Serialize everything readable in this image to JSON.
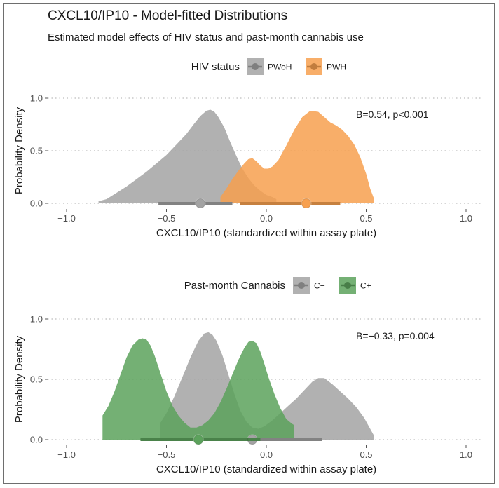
{
  "title": "CXCL10/IP10 - Model-fitted Distributions",
  "subtitle": "Estimated model effects of HIV status and past-month cannabis use",
  "chart_data": [
    {
      "type": "area",
      "legend_title": "HIV status",
      "legend_position": "top",
      "xlabel": "CXCL10/IP10 (standardized within assay plate)",
      "ylabel": "Probability Density",
      "xlim": [
        -1.0,
        1.0
      ],
      "ylim": [
        0,
        1.0
      ],
      "x_ticks": [
        "−1.0",
        "−0.5",
        "0.0",
        "0.5",
        "1.0"
      ],
      "y_ticks": [
        "0.0",
        "0.5",
        "1.0"
      ],
      "grid": "horizontal dotted",
      "annotation": "B=0.54, p<0.001",
      "series": [
        {
          "name": "PWoH",
          "color": "#a3a3a3",
          "x": [
            -0.84,
            -0.8,
            -0.75,
            -0.7,
            -0.65,
            -0.6,
            -0.55,
            -0.5,
            -0.45,
            -0.4,
            -0.36,
            -0.33,
            -0.3,
            -0.28,
            -0.26,
            -0.24,
            -0.21,
            -0.18,
            -0.15,
            -0.12,
            -0.09,
            -0.06,
            -0.03,
            0.0,
            0.03,
            0.05
          ],
          "density": [
            0.02,
            0.04,
            0.1,
            0.16,
            0.23,
            0.3,
            0.38,
            0.46,
            0.56,
            0.66,
            0.76,
            0.83,
            0.88,
            0.89,
            0.87,
            0.82,
            0.72,
            0.58,
            0.45,
            0.33,
            0.24,
            0.17,
            0.12,
            0.08,
            0.06,
            0.04
          ],
          "point_estimate": -0.33,
          "interval": [
            -0.54,
            -0.17
          ]
        },
        {
          "name": "PWH",
          "color": "#f7a04f",
          "x": [
            -0.23,
            -0.2,
            -0.17,
            -0.14,
            -0.11,
            -0.09,
            -0.07,
            -0.05,
            -0.03,
            -0.01,
            0.01,
            0.03,
            0.06,
            0.1,
            0.14,
            0.18,
            0.22,
            0.26,
            0.29,
            0.32,
            0.35,
            0.38,
            0.41,
            0.44,
            0.47,
            0.5,
            0.52,
            0.54
          ],
          "density": [
            0.06,
            0.14,
            0.23,
            0.31,
            0.38,
            0.42,
            0.43,
            0.4,
            0.36,
            0.33,
            0.33,
            0.35,
            0.41,
            0.55,
            0.7,
            0.82,
            0.88,
            0.87,
            0.82,
            0.77,
            0.74,
            0.7,
            0.64,
            0.56,
            0.44,
            0.28,
            0.14,
            0.04
          ],
          "point_estimate": 0.2,
          "interval": [
            -0.13,
            0.37
          ]
        }
      ]
    },
    {
      "type": "area",
      "legend_title": "Past-month Cannabis",
      "legend_position": "top",
      "xlabel": "CXCL10/IP10 (standardized within assay plate)",
      "ylabel": "Probability Density",
      "xlim": [
        -1.0,
        1.0
      ],
      "ylim": [
        0,
        1.0
      ],
      "x_ticks": [
        "−1.0",
        "−0.5",
        "0.0",
        "0.5",
        "1.0"
      ],
      "y_ticks": [
        "0.0",
        "0.5",
        "1.0"
      ],
      "grid": "horizontal dotted",
      "annotation": "B=−0.33, p=0.004",
      "series": [
        {
          "name": "C−",
          "color": "#a3a3a3",
          "x": [
            -0.53,
            -0.5,
            -0.46,
            -0.42,
            -0.38,
            -0.34,
            -0.31,
            -0.29,
            -0.27,
            -0.25,
            -0.22,
            -0.19,
            -0.16,
            -0.13,
            -0.1,
            -0.07,
            -0.04,
            -0.01,
            0.03,
            0.07,
            0.11,
            0.15,
            0.19,
            0.23,
            0.26,
            0.29,
            0.33,
            0.37,
            0.41,
            0.45,
            0.49,
            0.52,
            0.54
          ],
          "density": [
            0.14,
            0.22,
            0.36,
            0.52,
            0.68,
            0.82,
            0.88,
            0.89,
            0.87,
            0.82,
            0.7,
            0.54,
            0.38,
            0.24,
            0.15,
            0.1,
            0.09,
            0.11,
            0.16,
            0.22,
            0.28,
            0.34,
            0.41,
            0.48,
            0.51,
            0.51,
            0.46,
            0.4,
            0.34,
            0.27,
            0.18,
            0.09,
            0.03
          ],
          "point_estimate": -0.07,
          "interval": [
            -0.31,
            0.28
          ]
        },
        {
          "name": "C+",
          "color": "#5ca25c",
          "x": [
            -0.82,
            -0.79,
            -0.76,
            -0.73,
            -0.7,
            -0.67,
            -0.64,
            -0.62,
            -0.6,
            -0.58,
            -0.56,
            -0.54,
            -0.52,
            -0.5,
            -0.47,
            -0.44,
            -0.41,
            -0.38,
            -0.35,
            -0.32,
            -0.29,
            -0.26,
            -0.23,
            -0.2,
            -0.17,
            -0.14,
            -0.11,
            -0.09,
            -0.07,
            -0.05,
            -0.03,
            -0.01,
            0.01,
            0.04,
            0.07,
            0.1,
            0.13,
            0.14
          ],
          "density": [
            0.2,
            0.28,
            0.4,
            0.54,
            0.68,
            0.78,
            0.83,
            0.84,
            0.83,
            0.78,
            0.7,
            0.6,
            0.5,
            0.4,
            0.28,
            0.2,
            0.14,
            0.1,
            0.1,
            0.12,
            0.16,
            0.22,
            0.31,
            0.42,
            0.54,
            0.66,
            0.76,
            0.81,
            0.82,
            0.8,
            0.73,
            0.63,
            0.52,
            0.38,
            0.26,
            0.17,
            0.13,
            0.12
          ],
          "point_estimate": -0.34,
          "interval": [
            -0.63,
            -0.03
          ]
        }
      ]
    }
  ]
}
